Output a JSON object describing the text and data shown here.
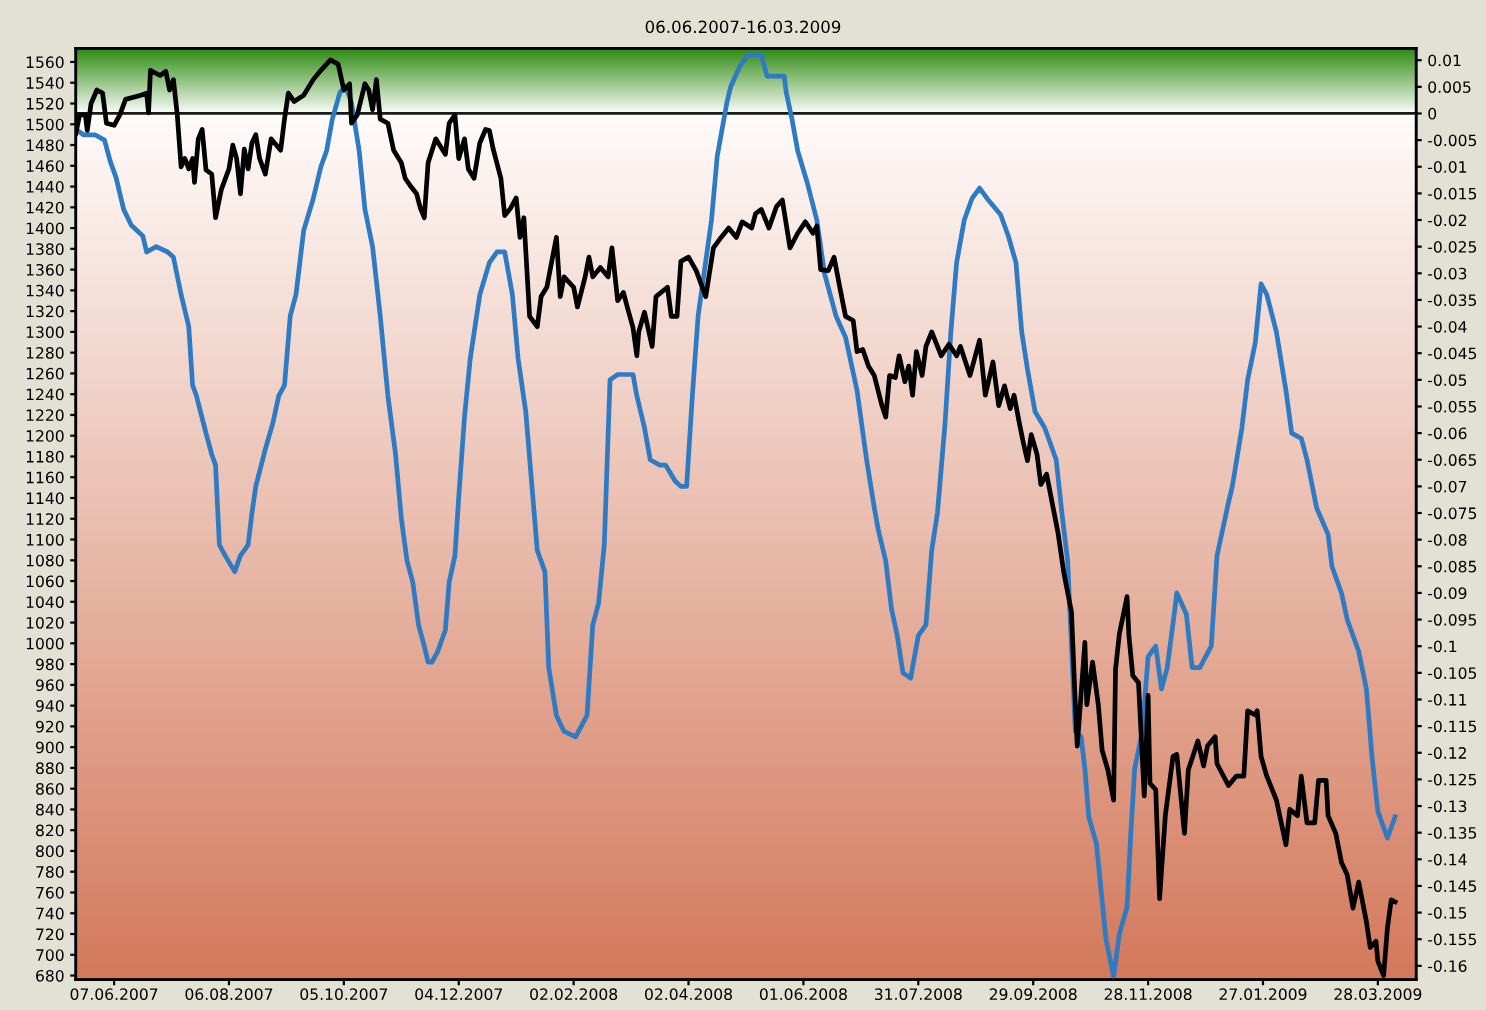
{
  "chart_data": {
    "type": "line",
    "title": "06.06.2007-16.03.2009",
    "xlim": [
      "2007-05-18",
      "2009-04-17"
    ],
    "xticks": [
      {
        "value": "2007-06-07",
        "label": "07.06.2007"
      },
      {
        "value": "2007-08-06",
        "label": "06.08.2007"
      },
      {
        "value": "2007-10-05",
        "label": "05.10.2007"
      },
      {
        "value": "2007-12-04",
        "label": "04.12.2007"
      },
      {
        "value": "2008-02-02",
        "label": "02.02.2008"
      },
      {
        "value": "2008-04-02",
        "label": "02.04.2008"
      },
      {
        "value": "2008-06-01",
        "label": "01.06.2008"
      },
      {
        "value": "2008-07-31",
        "label": "31.07.2008"
      },
      {
        "value": "2008-09-29",
        "label": "29.09.2008"
      },
      {
        "value": "2008-11-28",
        "label": "28.11.2008"
      },
      {
        "value": "2009-01-27",
        "label": "27.01.2009"
      },
      {
        "value": "2009-03-28",
        "label": "28.03.2009"
      }
    ],
    "ylim": [
      676,
      1573
    ],
    "yticks": [
      680,
      700,
      720,
      740,
      760,
      780,
      800,
      820,
      840,
      860,
      880,
      900,
      920,
      940,
      960,
      980,
      1000,
      1020,
      1040,
      1060,
      1080,
      1100,
      1120,
      1140,
      1160,
      1180,
      1200,
      1220,
      1240,
      1260,
      1280,
      1300,
      1320,
      1340,
      1360,
      1380,
      1400,
      1420,
      1440,
      1460,
      1480,
      1500,
      1520,
      1540,
      1560
    ],
    "y2lim": [
      -0.1626,
      0.0122
    ],
    "y2ticks": [
      0.01,
      0.005,
      0,
      -0.005,
      -0.01,
      -0.015,
      -0.02,
      -0.025,
      -0.03,
      -0.035,
      -0.04,
      -0.045,
      -0.05,
      -0.055,
      -0.06,
      -0.065,
      -0.07,
      -0.075,
      -0.08,
      -0.085,
      -0.09,
      -0.095,
      -0.1,
      -0.105,
      -0.11,
      -0.115,
      -0.12,
      -0.125,
      -0.13,
      -0.135,
      -0.14,
      -0.145,
      -0.15,
      -0.155,
      -0.16
    ],
    "grid": false,
    "marker": "none",
    "line_style": "solid",
    "ref_lines": [
      {
        "axis": "y2",
        "value": 0,
        "color": "#1a1a1a",
        "line_style": "solid"
      }
    ],
    "bands": [
      {
        "axis": "y2",
        "from": 0,
        "to": 0.0122,
        "color": "#2e8a10"
      },
      {
        "axis": "y2",
        "from": -0.1626,
        "to": 0,
        "color": "#d47a5c"
      }
    ],
    "series": [
      {
        "color": "#000000",
        "axis": "y",
        "x": [
          "2007-05-18",
          "2007-05-20",
          "2007-05-23",
          "2007-05-24",
          "2007-05-26",
          "2007-05-29",
          "2007-06-01",
          "2007-06-03",
          "2007-06-07",
          "2007-06-10",
          "2007-06-13",
          "2007-06-21",
          "2007-06-24",
          "2007-06-25",
          "2007-06-26",
          "2007-07-01",
          "2007-07-04",
          "2007-07-06",
          "2007-07-08",
          "2007-07-10",
          "2007-07-12",
          "2007-07-14",
          "2007-07-16",
          "2007-07-18",
          "2007-07-19",
          "2007-07-21",
          "2007-07-23",
          "2007-07-25",
          "2007-07-28",
          "2007-07-30",
          "2007-08-02",
          "2007-08-06",
          "2007-08-08",
          "2007-08-10",
          "2007-08-12",
          "2007-08-14",
          "2007-08-16",
          "2007-08-18",
          "2007-08-20",
          "2007-08-22",
          "2007-08-25",
          "2007-08-28",
          "2007-09-02",
          "2007-09-04",
          "2007-09-06",
          "2007-09-09",
          "2007-09-14",
          "2007-09-19",
          "2007-09-23",
          "2007-09-28",
          "2007-10-02",
          "2007-10-05",
          "2007-10-08",
          "2007-10-09",
          "2007-10-12",
          "2007-10-16",
          "2007-10-18",
          "2007-10-20",
          "2007-10-22",
          "2007-10-24",
          "2007-10-28",
          "2007-10-31",
          "2007-11-04",
          "2007-11-06",
          "2007-11-09",
          "2007-11-12",
          "2007-11-14",
          "2007-11-16",
          "2007-11-18",
          "2007-11-22",
          "2007-11-27",
          "2007-11-29",
          "2007-12-02",
          "2007-12-04",
          "2007-12-07",
          "2007-12-09",
          "2007-12-12",
          "2007-12-15",
          "2007-12-18",
          "2007-12-20",
          "2007-12-22",
          "2007-12-26",
          "2007-12-28",
          "2007-12-31",
          "2008-01-03",
          "2008-01-05",
          "2008-01-07",
          "2008-01-10",
          "2008-01-14",
          "2008-01-16",
          "2008-01-19",
          "2008-01-22",
          "2008-01-24",
          "2008-01-26",
          "2008-01-28",
          "2008-02-02",
          "2008-02-04",
          "2008-02-08",
          "2008-02-10",
          "2008-02-12",
          "2008-02-16",
          "2008-02-20",
          "2008-02-22",
          "2008-02-25",
          "2008-02-28",
          "2008-03-01",
          "2008-03-04",
          "2008-03-06",
          "2008-03-07",
          "2008-03-10",
          "2008-03-14",
          "2008-03-16",
          "2008-03-22",
          "2008-03-24",
          "2008-03-27",
          "2008-03-29",
          "2008-04-02",
          "2008-04-06",
          "2008-04-11",
          "2008-04-15",
          "2008-04-19",
          "2008-04-23",
          "2008-04-27",
          "2008-04-30",
          "2008-05-05",
          "2008-05-07",
          "2008-05-10",
          "2008-05-14",
          "2008-05-18",
          "2008-05-21",
          "2008-05-25",
          "2008-05-29",
          "2008-06-02",
          "2008-06-06",
          "2008-06-08",
          "2008-06-10",
          "2008-06-14",
          "2008-06-17",
          "2008-06-20",
          "2008-06-23",
          "2008-06-27",
          "2008-06-29",
          "2008-07-02",
          "2008-07-05",
          "2008-07-08",
          "2008-07-12",
          "2008-07-14",
          "2008-07-16",
          "2008-07-19",
          "2008-07-21",
          "2008-07-24",
          "2008-07-26",
          "2008-07-28",
          "2008-07-30",
          "2008-08-02",
          "2008-08-04",
          "2008-08-07",
          "2008-08-12",
          "2008-08-16",
          "2008-08-20",
          "2008-08-22",
          "2008-08-27",
          "2008-09-01",
          "2008-09-04",
          "2008-09-08",
          "2008-09-11",
          "2008-09-14",
          "2008-09-17",
          "2008-09-19",
          "2008-09-22",
          "2008-09-24",
          "2008-09-26",
          "2008-09-28",
          "2008-10-01",
          "2008-10-03",
          "2008-10-06",
          "2008-10-10",
          "2008-10-12",
          "2008-10-15",
          "2008-10-19",
          "2008-10-21",
          "2008-10-22",
          "2008-10-26",
          "2008-10-27",
          "2008-10-30",
          "2008-11-02",
          "2008-11-04",
          "2008-11-07",
          "2008-11-10",
          "2008-11-11",
          "2008-11-13",
          "2008-11-17",
          "2008-11-18",
          "2008-11-20",
          "2008-11-23",
          "2008-11-26",
          "2008-11-28",
          "2008-11-29",
          "2008-12-02",
          "2008-12-04",
          "2008-12-07",
          "2008-12-11",
          "2008-12-13",
          "2008-12-17",
          "2008-12-19",
          "2008-12-24",
          "2008-12-27",
          "2008-12-29",
          "2009-01-02",
          "2009-01-03",
          "2009-01-09",
          "2009-01-13",
          "2009-01-17",
          "2009-01-19",
          "2009-01-23",
          "2009-01-24",
          "2009-01-26",
          "2009-01-29",
          "2009-02-03",
          "2009-02-08",
          "2009-02-10",
          "2009-02-14",
          "2009-02-16",
          "2009-02-19",
          "2009-02-23",
          "2009-02-25",
          "2009-03-01",
          "2009-03-02",
          "2009-03-06",
          "2009-03-09",
          "2009-03-12",
          "2009-03-15",
          "2009-03-18",
          "2009-03-22",
          "2009-03-24",
          "2009-03-27",
          "2009-03-28",
          "2009-03-31",
          "2009-04-02",
          "2009-04-04",
          "2009-04-06"
        ],
        "values": [
          1491,
          1509,
          1509,
          1494,
          1520,
          1533,
          1530,
          1501,
          1499,
          1509,
          1524,
          1528,
          1530,
          1511,
          1552,
          1547,
          1551,
          1533,
          1543,
          1509,
          1459,
          1467,
          1457,
          1467,
          1444,
          1486,
          1495,
          1456,
          1452,
          1410,
          1437,
          1457,
          1480,
          1467,
          1433,
          1476,
          1457,
          1482,
          1490,
          1467,
          1452,
          1486,
          1475,
          1505,
          1530,
          1522,
          1528,
          1543,
          1552,
          1562,
          1558,
          1533,
          1539,
          1501,
          1509,
          1539,
          1533,
          1514,
          1543,
          1505,
          1501,
          1475,
          1463,
          1448,
          1440,
          1433,
          1419,
          1410,
          1463,
          1486,
          1471,
          1501,
          1509,
          1467,
          1486,
          1457,
          1448,
          1482,
          1495,
          1494,
          1476,
          1448,
          1412,
          1419,
          1429,
          1391,
          1410,
          1315,
          1305,
          1334,
          1343,
          1372,
          1391,
          1334,
          1353,
          1343,
          1324,
          1353,
          1372,
          1353,
          1362,
          1353,
          1381,
          1330,
          1338,
          1324,
          1304,
          1277,
          1300,
          1319,
          1286,
          1334,
          1343,
          1315,
          1315,
          1368,
          1372,
          1359,
          1334,
          1381,
          1391,
          1400,
          1391,
          1406,
          1400,
          1414,
          1418,
          1400,
          1421,
          1427,
          1381,
          1395,
          1406,
          1395,
          1402,
          1360,
          1359,
          1372,
          1343,
          1315,
          1311,
          1281,
          1283,
          1267,
          1258,
          1229,
          1218,
          1258,
          1256,
          1277,
          1252,
          1267,
          1239,
          1281,
          1258,
          1286,
          1300,
          1277,
          1288,
          1277,
          1286,
          1258,
          1292,
          1239,
          1271,
          1229,
          1248,
          1226,
          1239,
          1210,
          1192,
          1176,
          1201,
          1182,
          1153,
          1163,
          1125,
          1106,
          1068,
          1030,
          941,
          901,
          1001,
          941,
          982,
          941,
          897,
          878,
          849,
          975,
          1009,
          1045,
          1007,
          969,
          962,
          853,
          950,
          865,
          859,
          754,
          834,
          891,
          893,
          817,
          878,
          906,
          882,
          901,
          910,
          884,
          863,
          872,
          872,
          935,
          931,
          935,
          891,
          872,
          849,
          806,
          840,
          834,
          872,
          827,
          827,
          868,
          868,
          834,
          817,
          789,
          777,
          745,
          770,
          732,
          707,
          713,
          694,
          680,
          726,
          753,
          751
        ]
      },
      {
        "color": "#2e7bc4",
        "axis": "y2",
        "x": [
          "2007-05-18",
          "2007-05-22",
          "2007-05-28",
          "2007-06-02",
          "2007-06-05",
          "2007-06-08",
          "2007-06-12",
          "2007-06-16",
          "2007-06-22",
          "2007-06-24",
          "2007-06-29",
          "2007-07-05",
          "2007-07-08",
          "2007-07-12",
          "2007-07-16",
          "2007-07-18",
          "2007-07-20",
          "2007-07-25",
          "2007-07-28",
          "2007-07-30",
          "2007-08-01",
          "2007-08-04",
          "2007-08-09",
          "2007-08-12",
          "2007-08-16",
          "2007-08-18",
          "2007-08-20",
          "2007-08-25",
          "2007-08-29",
          "2007-09-01",
          "2007-09-04",
          "2007-09-07",
          "2007-09-10",
          "2007-09-14",
          "2007-09-19",
          "2007-09-23",
          "2007-09-26",
          "2007-09-29",
          "2007-10-03",
          "2007-10-06",
          "2007-10-09",
          "2007-10-13",
          "2007-10-16",
          "2007-10-20",
          "2007-10-24",
          "2007-10-28",
          "2007-11-01",
          "2007-11-04",
          "2007-11-07",
          "2007-11-10",
          "2007-11-13",
          "2007-11-16",
          "2007-11-18",
          "2007-11-20",
          "2007-11-23",
          "2007-11-27",
          "2007-11-29",
          "2007-12-02",
          "2007-12-04",
          "2007-12-07",
          "2007-12-10",
          "2007-12-15",
          "2007-12-20",
          "2007-12-24",
          "2007-12-28",
          "2008-01-01",
          "2008-01-04",
          "2008-01-08",
          "2008-01-14",
          "2008-01-18",
          "2008-01-20",
          "2008-01-24",
          "2008-01-28",
          "2008-02-03",
          "2008-02-09",
          "2008-02-12",
          "2008-02-15",
          "2008-02-18",
          "2008-02-21",
          "2008-02-25",
          "2008-03-04",
          "2008-03-06",
          "2008-03-10",
          "2008-03-13",
          "2008-03-18",
          "2008-03-21",
          "2008-03-26",
          "2008-03-29",
          "2008-04-01",
          "2008-04-04",
          "2008-04-07",
          "2008-04-14",
          "2008-04-17",
          "2008-04-22",
          "2008-04-24",
          "2008-04-29",
          "2008-05-03",
          "2008-05-10",
          "2008-05-13",
          "2008-05-22",
          "2008-05-23",
          "2008-05-26",
          "2008-05-29",
          "2008-06-03",
          "2008-06-08",
          "2008-06-12",
          "2008-06-18",
          "2008-06-23",
          "2008-06-29",
          "2008-07-04",
          "2008-07-08",
          "2008-07-10",
          "2008-07-14",
          "2008-07-17",
          "2008-07-20",
          "2008-07-23",
          "2008-07-27",
          "2008-07-31",
          "2008-08-04",
          "2008-08-07",
          "2008-08-10",
          "2008-08-14",
          "2008-08-17",
          "2008-08-20",
          "2008-08-24",
          "2008-08-28",
          "2008-09-01",
          "2008-09-05",
          "2008-09-12",
          "2008-09-16",
          "2008-09-20",
          "2008-09-23",
          "2008-09-26",
          "2008-09-30",
          "2008-10-05",
          "2008-10-11",
          "2008-10-14",
          "2008-10-17",
          "2008-10-21",
          "2008-10-24",
          "2008-10-26",
          "2008-10-28",
          "2008-11-01",
          "2008-11-06",
          "2008-11-10",
          "2008-11-13",
          "2008-11-17",
          "2008-11-19",
          "2008-11-21",
          "2008-11-25",
          "2008-11-28",
          "2008-12-02",
          "2008-12-05",
          "2008-12-08",
          "2008-12-12",
          "2008-12-13",
          "2008-12-18",
          "2008-12-21",
          "2008-12-25",
          "2008-12-31",
          "2009-01-03",
          "2009-01-09",
          "2009-01-11",
          "2009-01-16",
          "2009-01-19",
          "2009-01-23",
          "2009-01-26",
          "2009-01-29",
          "2009-02-03",
          "2009-02-08",
          "2009-02-11",
          "2009-02-16",
          "2009-02-19",
          "2009-02-24",
          "2009-03-02",
          "2009-03-04",
          "2009-03-09",
          "2009-03-12",
          "2009-03-18",
          "2009-03-22",
          "2009-03-25",
          "2009-03-28",
          "2009-04-02",
          "2009-04-06"
        ],
        "values": [
          -0.003,
          -0.004,
          -0.004,
          -0.005,
          -0.009,
          -0.012,
          -0.018,
          -0.021,
          -0.023,
          -0.026,
          -0.025,
          -0.026,
          -0.027,
          -0.034,
          -0.04,
          -0.051,
          -0.053,
          -0.06,
          -0.064,
          -0.066,
          -0.081,
          -0.083,
          -0.086,
          -0.083,
          -0.081,
          -0.075,
          -0.07,
          -0.063,
          -0.058,
          -0.053,
          -0.051,
          -0.038,
          -0.034,
          -0.022,
          -0.016,
          -0.01,
          -0.007,
          -0.001,
          0.004,
          0.005,
          0.002,
          -0.007,
          -0.018,
          -0.025,
          -0.038,
          -0.053,
          -0.064,
          -0.076,
          -0.084,
          -0.088,
          -0.096,
          -0.1,
          -0.103,
          -0.103,
          -0.101,
          -0.097,
          -0.088,
          -0.083,
          -0.072,
          -0.057,
          -0.046,
          -0.034,
          -0.028,
          -0.026,
          -0.026,
          -0.034,
          -0.046,
          -0.056,
          -0.082,
          -0.086,
          -0.104,
          -0.113,
          -0.116,
          -0.117,
          -0.113,
          -0.096,
          -0.092,
          -0.081,
          -0.05,
          -0.049,
          -0.049,
          -0.053,
          -0.059,
          -0.065,
          -0.066,
          -0.066,
          -0.069,
          -0.07,
          -0.07,
          -0.053,
          -0.038,
          -0.02,
          -0.008,
          0.002,
          0.005,
          0.009,
          0.011,
          0.011,
          0.007,
          0.007,
          0.004,
          -0.001,
          -0.007,
          -0.013,
          -0.02,
          -0.03,
          -0.038,
          -0.042,
          -0.052,
          -0.065,
          -0.074,
          -0.078,
          -0.084,
          -0.093,
          -0.098,
          -0.105,
          -0.106,
          -0.098,
          -0.096,
          -0.082,
          -0.075,
          -0.058,
          -0.041,
          -0.028,
          -0.02,
          -0.016,
          -0.014,
          -0.016,
          -0.019,
          -0.023,
          -0.028,
          -0.041,
          -0.048,
          -0.056,
          -0.059,
          -0.065,
          -0.075,
          -0.084,
          -0.116,
          -0.117,
          -0.123,
          -0.132,
          -0.137,
          -0.155,
          -0.162,
          -0.154,
          -0.149,
          -0.135,
          -0.123,
          -0.116,
          -0.102,
          -0.1,
          -0.108,
          -0.104,
          -0.093,
          -0.09,
          -0.094,
          -0.104,
          -0.104,
          -0.1,
          -0.083,
          -0.073,
          -0.07,
          -0.059,
          -0.05,
          -0.043,
          -0.032,
          -0.034,
          -0.041,
          -0.052,
          -0.06,
          -0.061,
          -0.065,
          -0.074,
          -0.079,
          -0.085,
          -0.09,
          -0.095,
          -0.101,
          -0.108,
          -0.121,
          -0.131,
          -0.136,
          -0.132
        ]
      }
    ]
  }
}
